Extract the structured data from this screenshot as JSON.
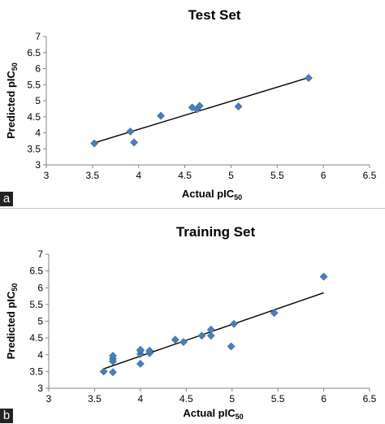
{
  "panel_labels": [
    "a",
    "b"
  ],
  "chart_data": [
    {
      "type": "scatter",
      "title": "Test Set",
      "xlabel": "Actual pIC",
      "xlabel_sub": "50",
      "ylabel": "Predicted pIC",
      "ylabel_sub": "50",
      "xlim": [
        3,
        6.5
      ],
      "ylim": [
        3,
        7
      ],
      "xticks": [
        "3",
        "3.5",
        "4",
        "4.5",
        "5",
        "5.5",
        "6",
        "6.5"
      ],
      "yticks": [
        "3",
        "3.5",
        "4",
        "4.5",
        "5",
        "5.5",
        "6",
        "6.5",
        "7"
      ],
      "grid": false,
      "marker": "diamond",
      "marker_color": "#4a7ebb",
      "line_color": "#000000",
      "points": [
        {
          "x": 3.52,
          "y": 3.67
        },
        {
          "x": 3.91,
          "y": 4.04
        },
        {
          "x": 3.95,
          "y": 3.7
        },
        {
          "x": 4.24,
          "y": 4.53
        },
        {
          "x": 4.58,
          "y": 4.79
        },
        {
          "x": 4.63,
          "y": 4.73
        },
        {
          "x": 4.66,
          "y": 4.84
        },
        {
          "x": 5.08,
          "y": 4.82
        },
        {
          "x": 5.84,
          "y": 5.71
        }
      ],
      "trendline": {
        "x": [
          3.5,
          5.85
        ],
        "y": [
          3.67,
          5.73
        ]
      }
    },
    {
      "type": "scatter",
      "title": "Training Set",
      "xlabel": "Actual pIC",
      "xlabel_sub": "50",
      "ylabel": "Predicted pIC",
      "ylabel_sub": "50",
      "xlim": [
        3,
        6.5
      ],
      "ylim": [
        3,
        7
      ],
      "xticks": [
        "3",
        "3.5",
        "4",
        "4.5",
        "5",
        "5.5",
        "6",
        "6.5"
      ],
      "yticks": [
        "3",
        "3.5",
        "4",
        "4.5",
        "5",
        "5.5",
        "6",
        "6.5",
        "7"
      ],
      "grid": false,
      "marker": "diamond",
      "marker_color": "#4a7ebb",
      "line_color": "#000000",
      "points": [
        {
          "x": 3.6,
          "y": 3.5
        },
        {
          "x": 3.7,
          "y": 3.48
        },
        {
          "x": 3.7,
          "y": 3.8
        },
        {
          "x": 3.7,
          "y": 3.88
        },
        {
          "x": 3.7,
          "y": 3.97
        },
        {
          "x": 4.0,
          "y": 3.73
        },
        {
          "x": 4.0,
          "y": 4.02
        },
        {
          "x": 4.0,
          "y": 4.12
        },
        {
          "x": 4.0,
          "y": 4.15
        },
        {
          "x": 4.1,
          "y": 4.05
        },
        {
          "x": 4.1,
          "y": 4.12
        },
        {
          "x": 4.38,
          "y": 4.45
        },
        {
          "x": 4.47,
          "y": 4.38
        },
        {
          "x": 4.67,
          "y": 4.57
        },
        {
          "x": 4.77,
          "y": 4.57
        },
        {
          "x": 4.77,
          "y": 4.75
        },
        {
          "x": 4.99,
          "y": 4.25
        },
        {
          "x": 5.02,
          "y": 4.92
        },
        {
          "x": 5.46,
          "y": 5.25
        },
        {
          "x": 6.0,
          "y": 6.33
        }
      ],
      "trendline": {
        "x": [
          3.6,
          6.0
        ],
        "y": [
          3.58,
          5.85
        ]
      }
    }
  ]
}
